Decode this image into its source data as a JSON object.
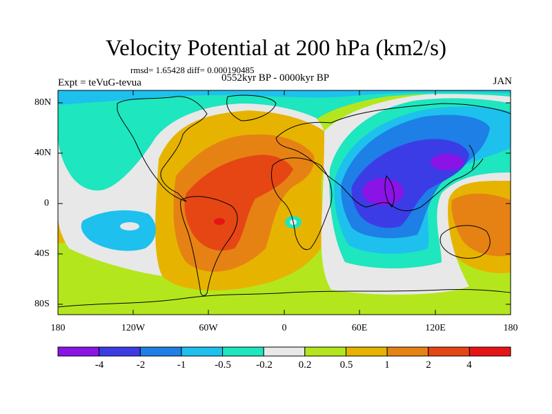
{
  "title": "Velocity Potential at 200 hPa (km2/s)",
  "stats": "rmsd= 1.65428 diff= 0.000190485",
  "experiment": "Expt = teVuG-tevua",
  "period": "0552kyr BP - 0000kyr BP",
  "month": "JAN",
  "lat_labels": [
    "80N",
    "40N",
    "0",
    "40S",
    "80S"
  ],
  "lon_labels": [
    "180",
    "120W",
    "60W",
    "0",
    "60E",
    "120E",
    "180"
  ],
  "colorbar": {
    "labels": [
      "-4",
      "-2",
      "-1",
      "-0.5",
      "-0.2",
      "0.2",
      "0.5",
      "1",
      "2",
      "4"
    ],
    "colors": [
      "#8a14e6",
      "#3c3ce6",
      "#1e7fe6",
      "#1ec0ee",
      "#1ee6be",
      "#e8e8e8",
      "#b4e61e",
      "#e6b400",
      "#e68214",
      "#e64614",
      "#e61414"
    ]
  }
}
